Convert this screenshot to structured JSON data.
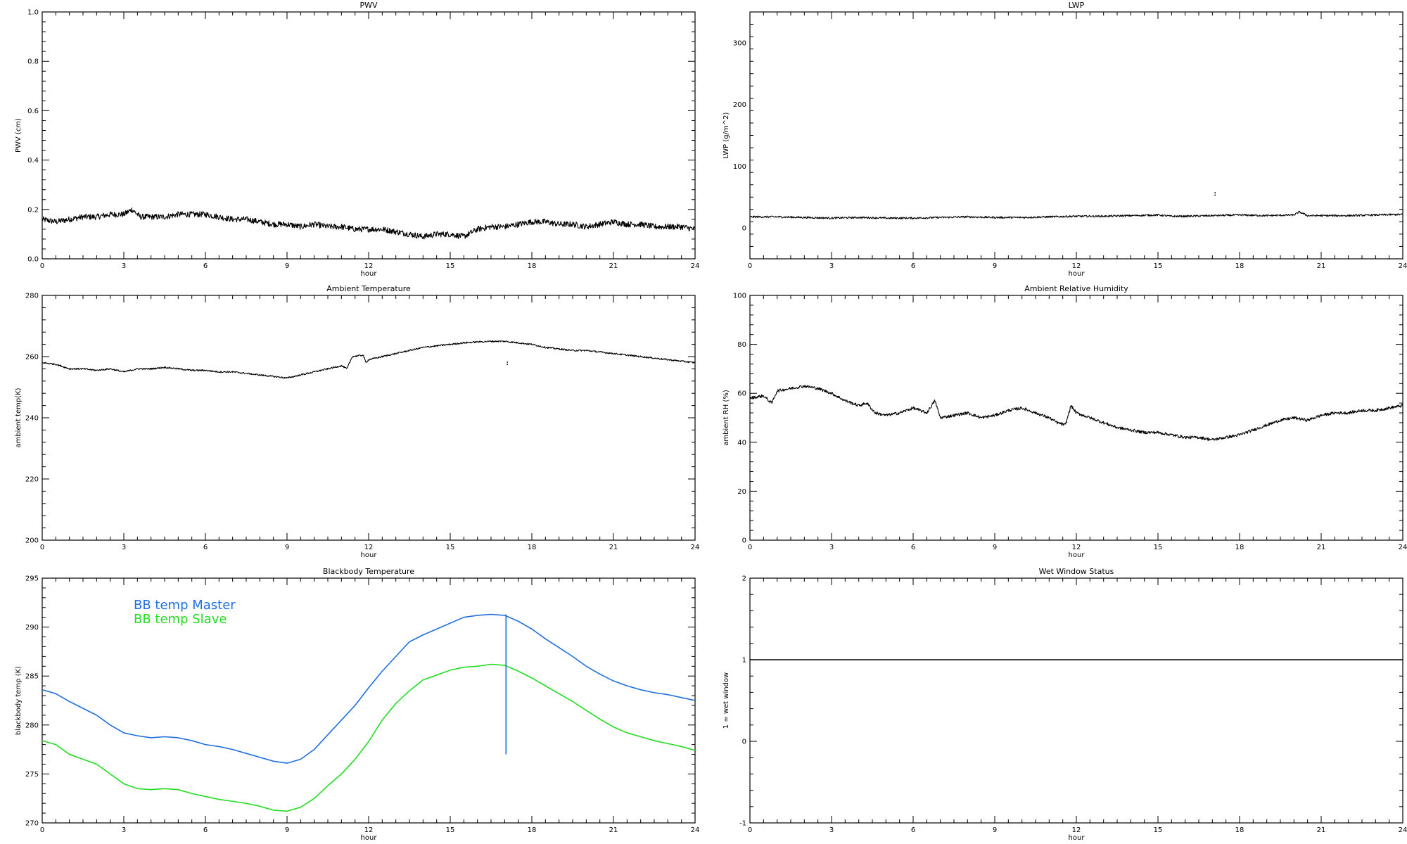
{
  "chart_data": [
    {
      "id": "pwv",
      "type": "line",
      "title": "PWV",
      "xlabel": "hour",
      "ylabel": "PWV (cm)",
      "xlim": [
        0,
        24
      ],
      "ylim": [
        0.0,
        1.0
      ],
      "xticks": [
        0,
        3,
        6,
        9,
        12,
        15,
        18,
        21,
        24
      ],
      "yticks": [
        0.0,
        0.2,
        0.4,
        0.6,
        0.8,
        1.0
      ],
      "ytick_labels": [
        "0.0",
        "0.2",
        "0.4",
        "0.6",
        "0.8",
        "1.0"
      ],
      "noise": 0.012,
      "series": [
        {
          "color": "#000000",
          "x": [
            0,
            0.5,
            1,
            1.5,
            2,
            2.5,
            3,
            3.3,
            3.6,
            4,
            4.5,
            5,
            5.5,
            6,
            6.5,
            7,
            7.5,
            8,
            8.5,
            9,
            9.5,
            10,
            10.5,
            11,
            11.5,
            12,
            12.5,
            13,
            13.5,
            14,
            14.5,
            15,
            15.5,
            16,
            16.5,
            17,
            17.5,
            18,
            18.5,
            19,
            19.5,
            20,
            20.5,
            21,
            21.5,
            22,
            22.5,
            23,
            23.5,
            24
          ],
          "y": [
            0.16,
            0.15,
            0.16,
            0.17,
            0.17,
            0.18,
            0.18,
            0.2,
            0.17,
            0.17,
            0.17,
            0.18,
            0.18,
            0.18,
            0.17,
            0.16,
            0.16,
            0.15,
            0.14,
            0.14,
            0.13,
            0.14,
            0.13,
            0.13,
            0.12,
            0.12,
            0.12,
            0.11,
            0.1,
            0.09,
            0.1,
            0.1,
            0.09,
            0.12,
            0.13,
            0.13,
            0.14,
            0.15,
            0.15,
            0.14,
            0.14,
            0.13,
            0.14,
            0.15,
            0.14,
            0.14,
            0.13,
            0.13,
            0.13,
            0.12
          ]
        }
      ]
    },
    {
      "id": "lwp",
      "type": "line",
      "title": "LWP",
      "xlabel": "hour",
      "ylabel": "LWP (g/m^2)",
      "xlim": [
        0,
        24
      ],
      "ylim": [
        -50,
        350
      ],
      "xticks": [
        0,
        3,
        6,
        9,
        12,
        15,
        18,
        21,
        24
      ],
      "yticks": [
        0,
        100,
        200,
        300
      ],
      "ytick_labels": [
        "0",
        "100",
        "200",
        "300"
      ],
      "noise": 1.5,
      "series": [
        {
          "color": "#000000",
          "x": [
            0,
            1,
            2,
            3,
            4,
            5,
            6,
            7,
            8,
            9,
            10,
            11,
            12,
            13,
            14,
            15,
            15.5,
            16,
            17,
            18,
            19,
            20,
            20.2,
            20.5,
            21,
            22,
            23,
            24
          ],
          "y": [
            18,
            18,
            17,
            16,
            17,
            16,
            16,
            17,
            18,
            17,
            17,
            18,
            19,
            19,
            20,
            21,
            19,
            19,
            20,
            21,
            20,
            21,
            26,
            20,
            20,
            20,
            21,
            22
          ]
        }
      ],
      "scatter": [
        {
          "x": 17.1,
          "y": 57
        }
      ]
    },
    {
      "id": "ambient-temp",
      "type": "line",
      "title": "Ambient Temperature",
      "xlabel": "hour",
      "ylabel": "ambient temp(K)",
      "xlim": [
        0,
        24
      ],
      "ylim": [
        200,
        280
      ],
      "xticks": [
        0,
        3,
        6,
        9,
        12,
        15,
        18,
        21,
        24
      ],
      "yticks": [
        200,
        220,
        240,
        260,
        280
      ],
      "ytick_labels": [
        "200",
        "220",
        "240",
        "260",
        "280"
      ],
      "noise": 0.25,
      "series": [
        {
          "color": "#000000",
          "x": [
            0,
            0.5,
            1,
            1.5,
            2,
            2.5,
            3,
            3.5,
            4,
            4.5,
            5,
            5.5,
            6,
            6.5,
            7,
            7.5,
            8,
            8.5,
            9,
            9.5,
            10,
            10.5,
            11,
            11.2,
            11.4,
            11.8,
            11.9,
            12,
            12.5,
            13,
            13.5,
            14,
            14.5,
            15,
            15.5,
            16,
            16.5,
            17,
            17.5,
            18,
            18.5,
            19,
            19.5,
            20,
            20.5,
            21,
            21.5,
            22,
            22.5,
            23,
            23.5,
            24
          ],
          "y": [
            258,
            257.5,
            256,
            256,
            255.5,
            256,
            255,
            256,
            256,
            256.5,
            256,
            255.5,
            255.5,
            255,
            255,
            254.5,
            254,
            253.5,
            253,
            254,
            255,
            256,
            257,
            256,
            260,
            260.5,
            258,
            259,
            260,
            261,
            262,
            263,
            263.5,
            264,
            264.5,
            264.8,
            265,
            265,
            264.5,
            264,
            263,
            262.5,
            262,
            262,
            261.5,
            261,
            260.5,
            260,
            259.5,
            259,
            258.5,
            258
          ]
        }
      ],
      "scatter": [
        {
          "x": 17.1,
          "y": 258.2
        }
      ]
    },
    {
      "id": "ambient-rh",
      "type": "line",
      "title": "Ambient Relative Humidity",
      "xlabel": "hour",
      "ylabel": "ambient RH (%)",
      "xlim": [
        0,
        24
      ],
      "ylim": [
        0,
        100
      ],
      "xticks": [
        0,
        3,
        6,
        9,
        12,
        15,
        18,
        21,
        24
      ],
      "yticks": [
        0,
        20,
        40,
        60,
        80,
        100
      ],
      "ytick_labels": [
        "0",
        "20",
        "40",
        "60",
        "80",
        "100"
      ],
      "noise": 0.6,
      "series": [
        {
          "color": "#000000",
          "x": [
            0,
            0.5,
            0.8,
            1,
            1.5,
            2,
            2.5,
            3,
            3.5,
            4,
            4.3,
            4.6,
            5,
            5.5,
            6,
            6.5,
            6.8,
            7,
            7.5,
            8,
            8.5,
            9,
            9.5,
            10,
            10.5,
            11,
            11.3,
            11.6,
            11.8,
            12,
            12.5,
            13,
            13.5,
            14,
            14.5,
            15,
            15.5,
            16,
            16.5,
            17,
            17.5,
            18,
            18.5,
            19,
            19.5,
            20,
            20.5,
            21,
            21.5,
            22,
            22.5,
            23,
            23.5,
            24
          ],
          "y": [
            58,
            59,
            56,
            61,
            62,
            63,
            62,
            60,
            57,
            55,
            56,
            52,
            51,
            52,
            54,
            52,
            57,
            50,
            51,
            52,
            50,
            51,
            53,
            54,
            52,
            50,
            48,
            47,
            55,
            52,
            50,
            48,
            46,
            45,
            44,
            44,
            43,
            42,
            42,
            41,
            42,
            43,
            45,
            47,
            49,
            50,
            49,
            51,
            52,
            52,
            53,
            53,
            54,
            55
          ]
        }
      ]
    },
    {
      "id": "bb-temp",
      "type": "line",
      "title": "Blackbody Temperature",
      "xlabel": "hour",
      "ylabel": "blackbody temp (K)",
      "xlim": [
        0,
        24
      ],
      "ylim": [
        270,
        295
      ],
      "xticks": [
        0,
        3,
        6,
        9,
        12,
        15,
        18,
        21,
        24
      ],
      "yticks": [
        270,
        275,
        280,
        285,
        290,
        295
      ],
      "ytick_labels": [
        "270",
        "275",
        "280",
        "285",
        "290",
        "295"
      ],
      "noise": 0,
      "series": [
        {
          "name": "BB temp Master",
          "color": "#1f6fe0",
          "x": [
            0,
            0.5,
            1,
            1.5,
            2,
            2.5,
            3,
            3.5,
            4,
            4.5,
            5,
            5.5,
            6,
            6.5,
            7,
            7.5,
            8,
            8.5,
            9,
            9.5,
            10,
            10.5,
            11,
            11.5,
            12,
            12.5,
            13,
            13.5,
            14,
            14.5,
            15,
            15.5,
            16,
            16.5,
            17,
            17.5,
            18,
            18.5,
            19,
            19.5,
            20,
            20.5,
            21,
            21.5,
            22,
            22.5,
            23,
            23.5,
            24
          ],
          "y": [
            283.6,
            283.2,
            282.4,
            281.7,
            281.0,
            280.0,
            279.2,
            278.9,
            278.7,
            278.8,
            278.7,
            278.4,
            278.0,
            277.8,
            277.5,
            277.1,
            276.7,
            276.3,
            276.1,
            276.5,
            277.5,
            279.0,
            280.5,
            282.0,
            283.8,
            285.5,
            287.0,
            288.5,
            289.2,
            289.8,
            290.4,
            291.0,
            291.2,
            291.3,
            291.2,
            290.6,
            289.8,
            288.8,
            287.9,
            287.0,
            286.0,
            285.2,
            284.5,
            284.0,
            283.6,
            283.3,
            283.1,
            282.8,
            282.5
          ]
        },
        {
          "name": "BB temp Slave",
          "color": "#22dd22",
          "x": [
            0,
            0.5,
            1,
            1.5,
            2,
            2.5,
            3,
            3.5,
            4,
            4.5,
            5,
            5.5,
            6,
            6.5,
            7,
            7.5,
            8,
            8.5,
            9,
            9.5,
            10,
            10.5,
            11,
            11.5,
            12,
            12.5,
            13,
            13.5,
            14,
            14.5,
            15,
            15.5,
            16,
            16.5,
            17,
            17.5,
            18,
            18.5,
            19,
            19.5,
            20,
            20.5,
            21,
            21.5,
            22,
            22.5,
            23,
            23.5,
            24
          ],
          "y": [
            278.4,
            278.0,
            277.0,
            276.5,
            276.0,
            275.0,
            274.0,
            273.5,
            273.4,
            273.5,
            273.4,
            273.0,
            272.7,
            272.4,
            272.2,
            272.0,
            271.7,
            271.3,
            271.2,
            271.6,
            272.5,
            273.8,
            275.0,
            276.5,
            278.3,
            280.5,
            282.2,
            283.5,
            284.6,
            285.1,
            285.6,
            285.9,
            286.0,
            286.2,
            286.1,
            285.5,
            284.8,
            284.0,
            283.2,
            282.4,
            281.5,
            280.6,
            279.8,
            279.2,
            278.8,
            278.4,
            278.1,
            277.8,
            277.4
          ]
        }
      ],
      "vlines": [
        {
          "x": 17.05,
          "y0": 277.0,
          "y1": 291.3,
          "color": "#1f6fe0"
        }
      ],
      "legend_placement": "upper-left"
    },
    {
      "id": "wet-window",
      "type": "line",
      "title": "Wet Window Status",
      "xlabel": "hour",
      "ylabel": "1 = wet window",
      "xlim": [
        0,
        24
      ],
      "ylim": [
        -1,
        2
      ],
      "xticks": [
        0,
        3,
        6,
        9,
        12,
        15,
        18,
        21,
        24
      ],
      "yticks": [
        -1,
        0,
        1,
        2
      ],
      "ytick_labels": [
        "-1",
        "0",
        "1",
        "2"
      ],
      "noise": 0,
      "series": [
        {
          "color": "#000000",
          "x": [
            0,
            24
          ],
          "y": [
            1,
            1
          ]
        }
      ]
    }
  ]
}
